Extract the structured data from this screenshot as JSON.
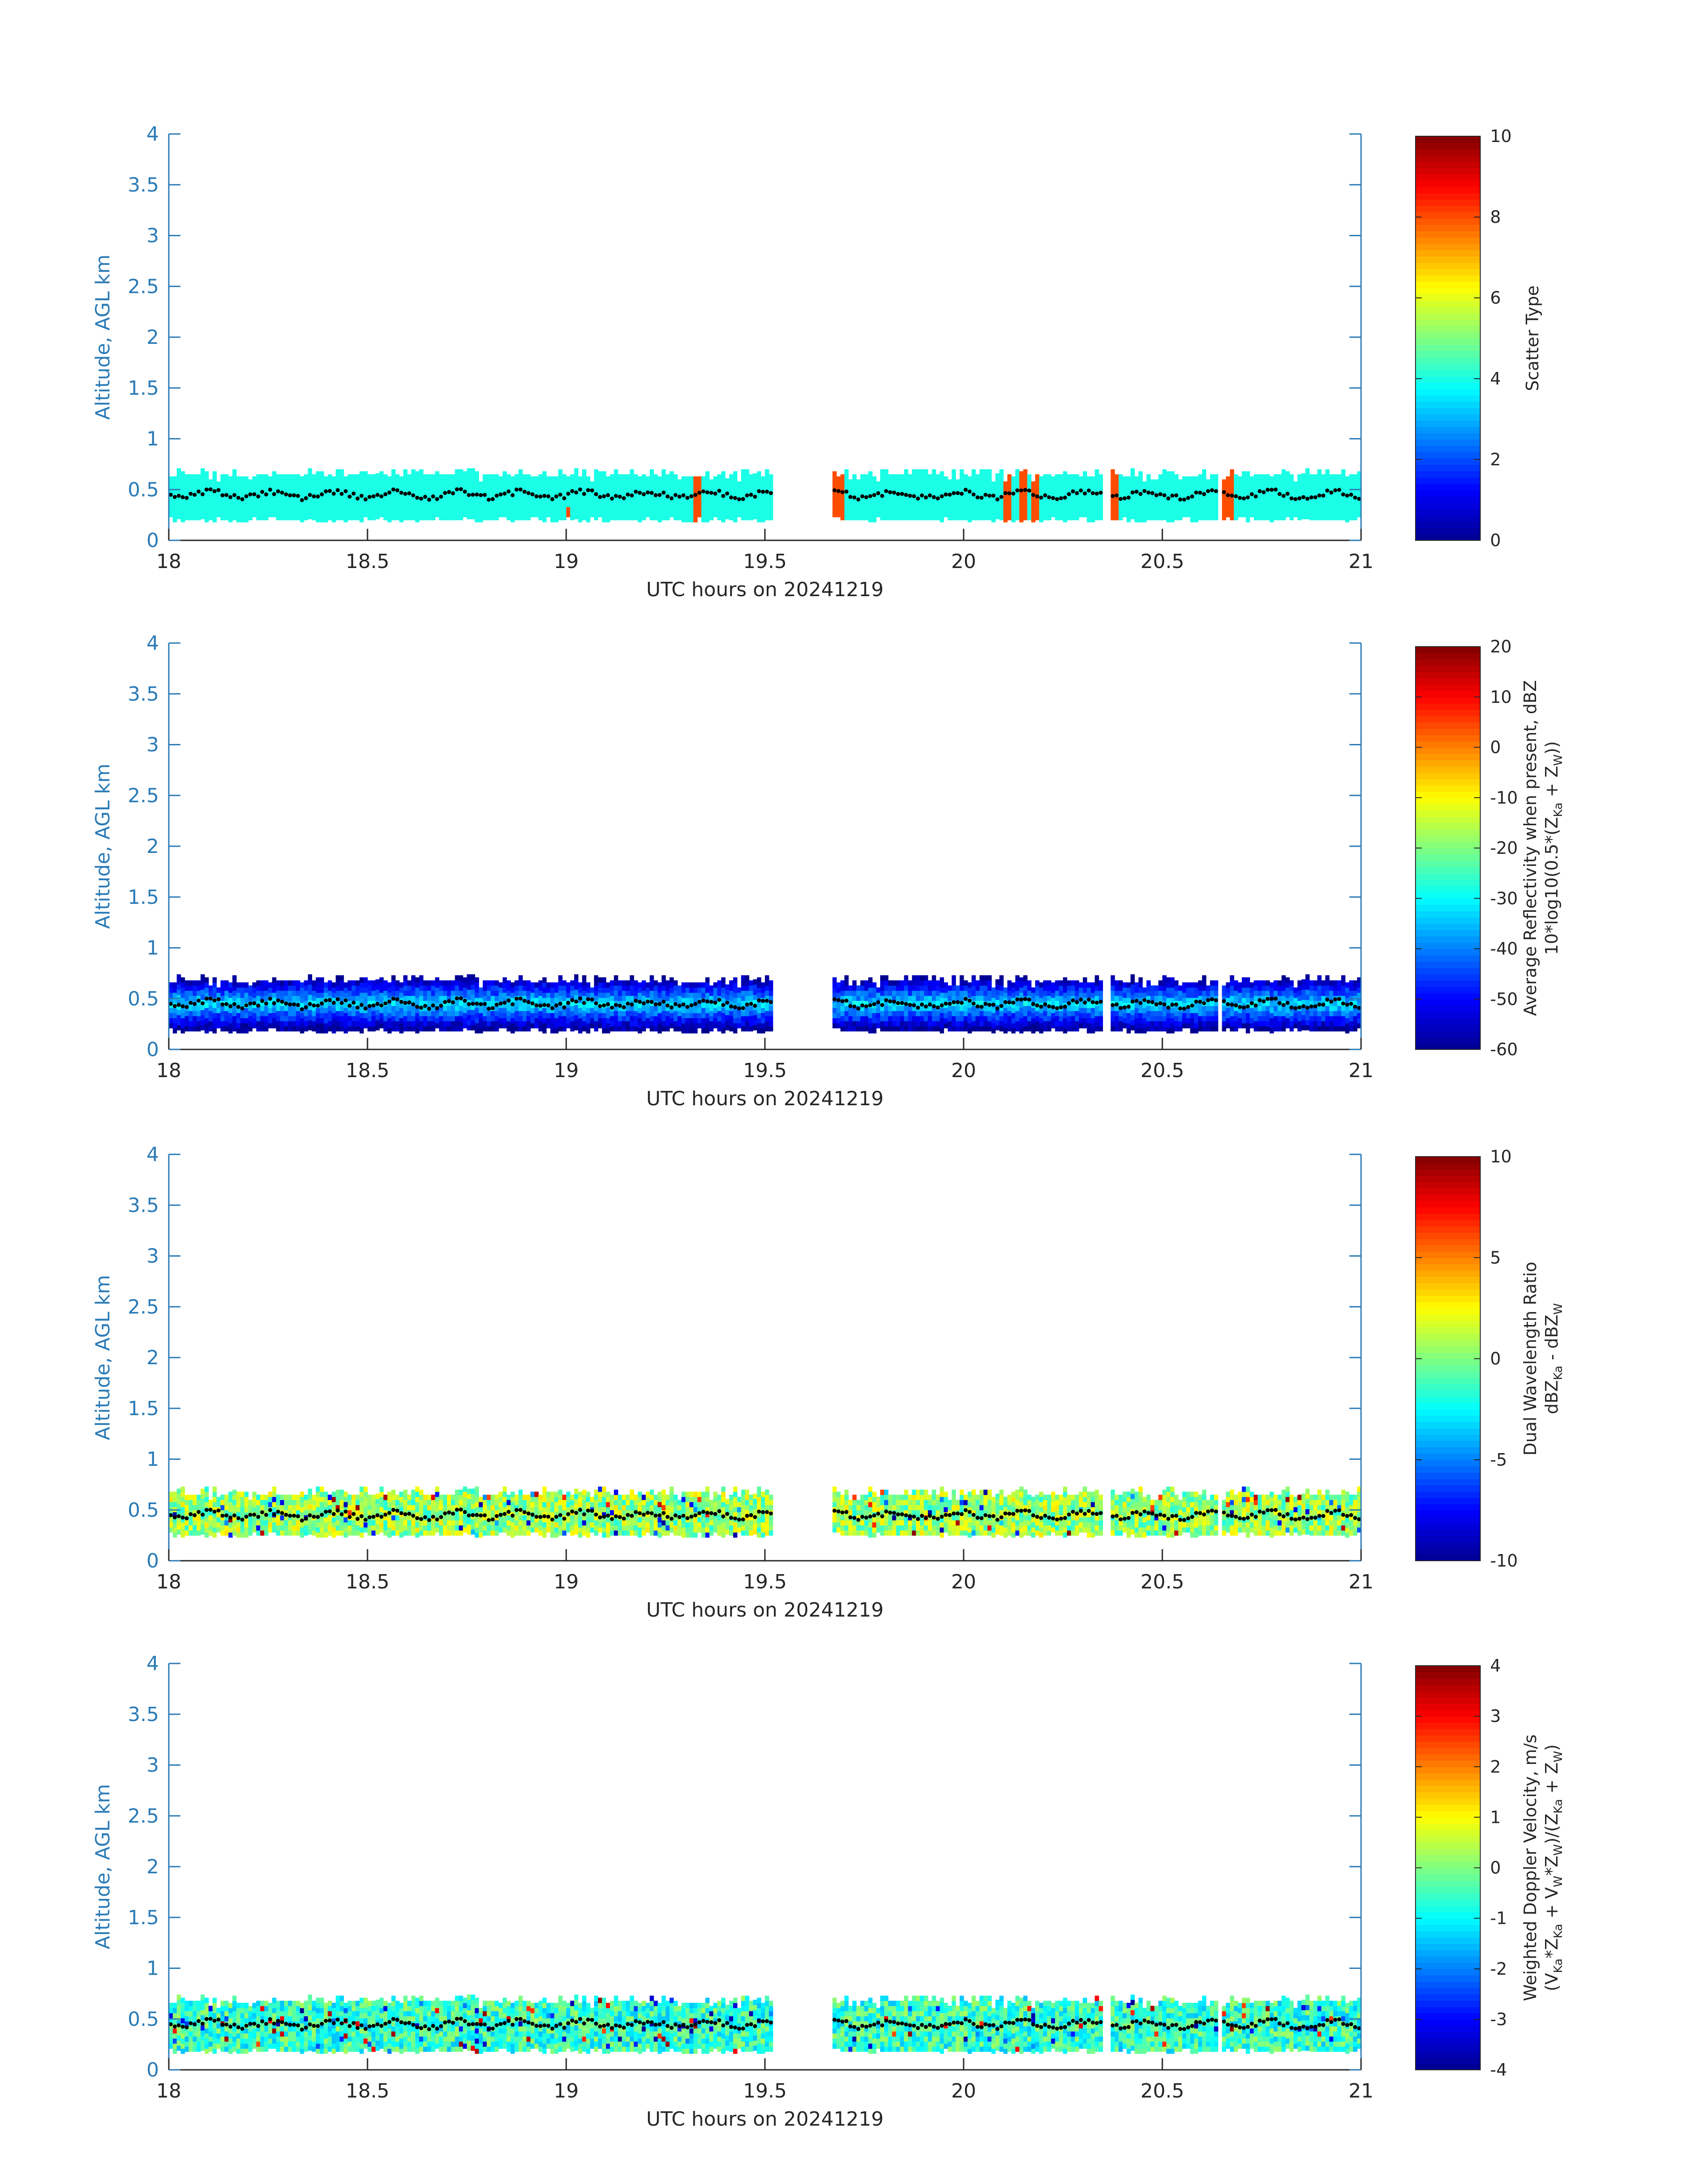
{
  "colormap": [
    "#00008f",
    "#0000ff",
    "#0080ff",
    "#00ffff",
    "#80ff80",
    "#ffff00",
    "#ff8000",
    "#ff0000",
    "#800000"
  ],
  "colors": {
    "axis": "#2b7bb6",
    "text": "#262626",
    "profile_points": "#000000"
  },
  "chart_data": [
    {
      "type": "heatmap",
      "id": "scatter",
      "xlabel": "UTC hours on 20241219",
      "ylabel": "Altitude, AGL km",
      "xlim": [
        18,
        21
      ],
      "ylim": [
        0,
        4
      ],
      "xticks": [
        "18",
        "18.5",
        "19",
        "19.5",
        "20",
        "20.5",
        "21"
      ],
      "yticks": [
        "0",
        "0.5",
        "1",
        "1.5",
        "2",
        "2.5",
        "3",
        "3.5",
        "4"
      ],
      "colorbar": {
        "label_lines": [
          "Scatter Type"
        ],
        "clim": [
          0,
          10
        ],
        "ticks": [
          "0",
          "2",
          "4",
          "6",
          "8",
          "10"
        ]
      },
      "layer_bottom_km": 0.2,
      "layer_top_km": 0.62,
      "data_segments": [
        [
          18.0,
          19.52
        ],
        [
          19.67,
          20.35
        ],
        [
          20.37,
          20.64
        ],
        [
          20.65,
          21.0
        ]
      ],
      "typical_value": 4,
      "special_columns": [
        {
          "x": [
            19.32,
            19.34
          ],
          "value": 8
        },
        {
          "x": [
            19.67,
            19.7
          ],
          "value": 8
        },
        {
          "x": [
            20.1,
            20.12
          ],
          "value": 8
        },
        {
          "x": [
            20.14,
            20.16
          ],
          "value": 8
        },
        {
          "x": [
            20.17,
            20.19
          ],
          "value": 8
        },
        {
          "x": [
            20.37,
            20.39
          ],
          "value": 8
        },
        {
          "x": [
            20.65,
            20.68
          ],
          "value": 8
        }
      ],
      "profile_points": {
        "x_step_h": 0.01,
        "mean_km": 0.45
      }
    },
    {
      "type": "heatmap",
      "id": "reflectivity",
      "xlabel": "UTC hours on 20241219",
      "ylabel": "Altitude, AGL km",
      "xlim": [
        18,
        21
      ],
      "ylim": [
        0,
        4
      ],
      "xticks": [
        "18",
        "18.5",
        "19",
        "19.5",
        "20",
        "20.5",
        "21"
      ],
      "yticks": [
        "0",
        "0.5",
        "1",
        "1.5",
        "2",
        "2.5",
        "3",
        "3.5",
        "4"
      ],
      "colorbar": {
        "label_lines": [
          "Average Reflectivity when present, dBZ",
          "10*log10(0.5*(Z{Ka} + Z{W}))"
        ],
        "clim": [
          -60,
          20
        ],
        "ticks": [
          "-60",
          "-50",
          "-40",
          "-30",
          "-20",
          "-10",
          "0",
          "10",
          "20"
        ]
      },
      "layer_bottom_km": 0.18,
      "layer_top_km": 0.65,
      "data_segments": [
        [
          18.0,
          19.52
        ],
        [
          19.67,
          20.35
        ],
        [
          20.37,
          20.64
        ],
        [
          20.65,
          21.0
        ]
      ],
      "value_range": [
        -56,
        -32
      ],
      "profile_points": {
        "x_step_h": 0.01,
        "mean_km": 0.45
      }
    },
    {
      "type": "heatmap",
      "id": "dwr",
      "xlabel": "UTC hours on 20241219",
      "ylabel": "Altitude, AGL km",
      "xlim": [
        18,
        21
      ],
      "ylim": [
        0,
        4
      ],
      "xticks": [
        "18",
        "18.5",
        "19",
        "19.5",
        "20",
        "20.5",
        "21"
      ],
      "yticks": [
        "0",
        "0.5",
        "1",
        "1.5",
        "2",
        "2.5",
        "3",
        "3.5",
        "4"
      ],
      "colorbar": {
        "label_lines": [
          "Dual Wavelength Ratio",
          "dBZ{Ka} - dBZ{W}"
        ],
        "clim": [
          -10,
          10
        ],
        "ticks": [
          "-10",
          "-5",
          "0",
          "5",
          "10"
        ]
      },
      "layer_bottom_km": 0.25,
      "layer_top_km": 0.65,
      "data_segments": [
        [
          18.0,
          19.52
        ],
        [
          19.67,
          20.35
        ],
        [
          20.37,
          20.64
        ],
        [
          20.65,
          21.0
        ]
      ],
      "value_range": [
        -2,
        3
      ],
      "profile_points": {
        "x_step_h": 0.01,
        "mean_km": 0.45
      }
    },
    {
      "type": "heatmap",
      "id": "doppler",
      "xlabel": "UTC hours on 20241219",
      "ylabel": "Altitude, AGL km",
      "xlim": [
        18,
        21
      ],
      "ylim": [
        0,
        4
      ],
      "xticks": [
        "18",
        "18.5",
        "19",
        "19.5",
        "20",
        "20.5",
        "21"
      ],
      "yticks": [
        "0",
        "0.5",
        "1",
        "1.5",
        "2",
        "2.5",
        "3",
        "3.5",
        "4"
      ],
      "colorbar": {
        "label_lines": [
          "Weighted Doppler Velocity, m/s",
          "(V{Ka}*Z{Ka} + V{W}*Z{W})/(Z{Ka} + Z{W})"
        ],
        "clim": [
          -4,
          4
        ],
        "ticks": [
          "-4",
          "-3",
          "-2",
          "-1",
          "0",
          "1",
          "2",
          "3",
          "4"
        ]
      },
      "layer_bottom_km": 0.18,
      "layer_top_km": 0.65,
      "data_segments": [
        [
          18.0,
          19.52
        ],
        [
          19.67,
          20.35
        ],
        [
          20.37,
          20.64
        ],
        [
          20.65,
          21.0
        ]
      ],
      "value_range": [
        -1.5,
        0.3
      ],
      "profile_points": {
        "x_step_h": 0.01,
        "mean_km": 0.45
      }
    }
  ]
}
